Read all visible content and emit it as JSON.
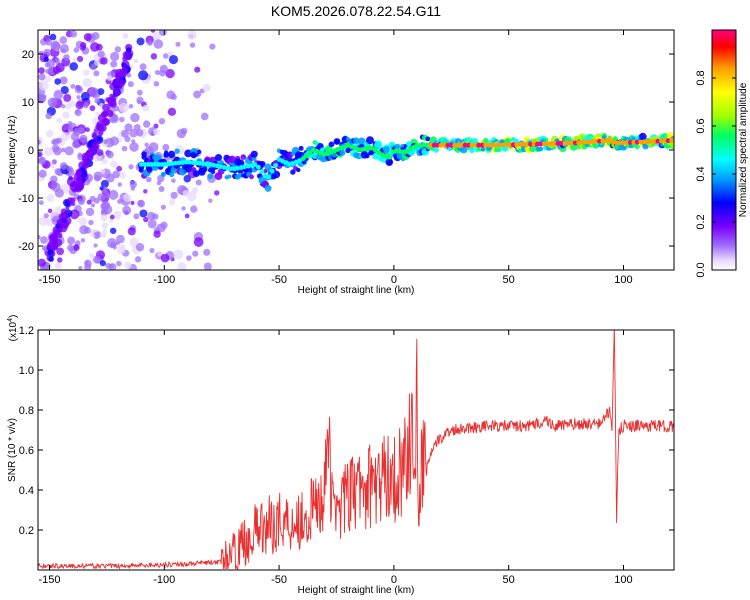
{
  "page": {
    "title": "KOM5.2026.078.22.54.G11"
  },
  "chart_data": [
    {
      "type": "heatmap",
      "id": "spectrogram",
      "xlabel": "Height of straight line (km)",
      "ylabel": "Frequency (Hz)",
      "xlim": [
        -155,
        122
      ],
      "ylim": [
        -25,
        25
      ],
      "xticks": [
        -150,
        -100,
        -50,
        0,
        50,
        100
      ],
      "yticks": [
        -20,
        -10,
        0,
        10,
        20
      ],
      "colorbar": {
        "label": "Normalized spectral amplitude",
        "range": [
          0,
          1
        ],
        "ticks": [
          "0.0",
          "0.2",
          "0.4",
          "0.6",
          "0.8"
        ],
        "tick_values": [
          0.0,
          0.2,
          0.4,
          0.6,
          0.8
        ],
        "colors": [
          "#ffffff",
          "#e8d9ff",
          "#a070ff",
          "#7a00ff",
          "#0000ff",
          "#00a0ff",
          "#00ffff",
          "#00ff60",
          "#a0ff00",
          "#ffff00",
          "#ffa000",
          "#ff0000",
          "#ff0080"
        ]
      },
      "ridge_centerline": {
        "x": [
          -110,
          -100,
          -90,
          -80,
          -70,
          -60,
          -55,
          -50,
          -45,
          -40,
          -35,
          -30,
          -25,
          -20,
          -15,
          -10,
          -5,
          -2,
          0,
          5,
          10,
          15,
          20,
          40,
          60,
          80,
          94,
          96,
          100,
          122
        ],
        "freq": [
          -3,
          -3,
          -2.5,
          -3,
          -4,
          -3,
          -6,
          -2,
          -3,
          -2,
          0,
          -1,
          0,
          1,
          0,
          0.5,
          -1,
          -1.5,
          0,
          -0.5,
          1,
          1,
          1,
          1,
          1.2,
          1.5,
          2,
          1.5,
          1.5,
          2
        ]
      }
    },
    {
      "type": "line",
      "id": "snr",
      "xlabel": "Height of straight line (km)",
      "ylabel": "SNR (10 * v/v)",
      "y_multiplier": "(x10",
      "y_multiplier_exp": "4",
      "y_multiplier_close": ")",
      "xlim": [
        -155,
        122
      ],
      "ylim": [
        0,
        1.2
      ],
      "xticks": [
        -150,
        -100,
        -50,
        0,
        50,
        100
      ],
      "yticks": [
        0.2,
        0.4,
        0.6,
        0.8,
        1.0,
        1.2
      ],
      "ytick_labels": [
        "0.2",
        "0.4",
        "0.6",
        "0.8",
        "1.0",
        "1.2"
      ],
      "series": [
        {
          "name": "SNR",
          "color": "#e83030",
          "x": [
            -155,
            -120,
            -90,
            -75,
            -70,
            -65,
            -60,
            -55,
            -50,
            -45,
            -40,
            -35,
            -31,
            -29,
            -27,
            -25,
            -20,
            -15,
            -10,
            -5,
            -2,
            0,
            3,
            6,
            9,
            10,
            11,
            12,
            13,
            15,
            20,
            25,
            30,
            40,
            50,
            60,
            66,
            70,
            80,
            90,
            94,
            95,
            96,
            97,
            98,
            100,
            110,
            122
          ],
          "y": [
            0.02,
            0.02,
            0.03,
            0.04,
            0.08,
            0.14,
            0.2,
            0.22,
            0.25,
            0.24,
            0.26,
            0.3,
            0.35,
            0.72,
            0.32,
            0.34,
            0.36,
            0.4,
            0.42,
            0.44,
            0.5,
            0.45,
            0.5,
            0.6,
            0.65,
            0.85,
            0.2,
            0.55,
            0.5,
            0.55,
            0.66,
            0.7,
            0.71,
            0.72,
            0.72,
            0.72,
            0.75,
            0.72,
            0.73,
            0.73,
            0.8,
            0.68,
            1.2,
            0.26,
            0.7,
            0.72,
            0.72,
            0.72
          ]
        }
      ]
    }
  ]
}
